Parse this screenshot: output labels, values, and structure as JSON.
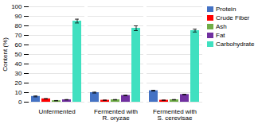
{
  "chart_data": {
    "type": "bar",
    "ylabel": "Content (%)",
    "categories": [
      "Unfermented",
      "Fermented with\nR. oryzae",
      "Fermented with\nS. cerevisae"
    ],
    "series": [
      {
        "name": "Protein",
        "color": "#4472C4",
        "values": [
          6.0,
          10.0,
          12.0
        ],
        "errors": [
          0.5,
          0.5,
          0.5
        ]
      },
      {
        "name": "Crude Fiber",
        "color": "#FF0000",
        "values": [
          3.5,
          2.0,
          2.0
        ],
        "errors": [
          0.2,
          0.2,
          0.2
        ]
      },
      {
        "name": "Ash",
        "color": "#70AD47",
        "values": [
          1.5,
          2.5,
          2.5
        ],
        "errors": [
          0.2,
          0.2,
          0.2
        ]
      },
      {
        "name": "Fat",
        "color": "#7030A0",
        "values": [
          2.5,
          7.0,
          8.0
        ],
        "errors": [
          0.2,
          0.3,
          0.3
        ]
      },
      {
        "name": "Carbohydrate",
        "color": "#40E0C0",
        "values": [
          85.0,
          77.5,
          75.0
        ],
        "errors": [
          2.0,
          2.5,
          1.5
        ]
      }
    ],
    "ylim": [
      0,
      100
    ],
    "yticks": [
      0,
      10,
      20,
      30,
      40,
      50,
      60,
      70,
      80,
      90,
      100
    ],
    "grid": true,
    "legend": "upper right"
  }
}
